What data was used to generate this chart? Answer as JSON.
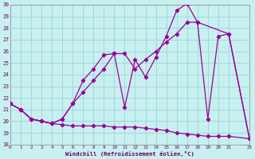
{
  "xlabel": "Windchill (Refroidissement éolien,°C)",
  "xlim": [
    0,
    23
  ],
  "ylim": [
    18,
    30
  ],
  "bg_color": "#c8f0f0",
  "line_color": "#990099",
  "grid_color": "#a0d8d8",
  "line1_x": [
    0,
    1,
    2,
    3,
    4,
    5,
    6,
    7,
    8,
    9,
    10,
    11,
    12,
    13,
    14,
    15,
    16,
    17,
    18,
    19,
    20,
    21,
    23
  ],
  "line1_y": [
    21.5,
    21.0,
    20.2,
    20.0,
    19.8,
    19.7,
    19.6,
    19.6,
    19.6,
    19.6,
    19.5,
    19.5,
    19.5,
    19.4,
    19.3,
    19.2,
    19.0,
    18.9,
    18.8,
    18.7,
    18.7,
    18.7,
    18.5
  ],
  "line2_x": [
    0,
    1,
    2,
    3,
    4,
    5,
    6,
    7,
    8,
    9,
    10,
    11,
    12,
    13,
    14,
    15,
    16,
    17,
    18,
    19,
    20,
    21,
    23
  ],
  "line2_y": [
    21.5,
    21.0,
    20.2,
    20.0,
    19.8,
    20.2,
    21.5,
    23.5,
    24.5,
    25.7,
    25.8,
    21.2,
    25.3,
    23.8,
    25.5,
    27.3,
    29.5,
    30.1,
    28.5,
    20.2,
    27.3,
    27.5,
    18.5
  ],
  "line3_x": [
    0,
    1,
    2,
    3,
    4,
    5,
    6,
    7,
    8,
    9,
    10,
    11,
    12,
    13,
    14,
    15,
    16,
    17,
    18,
    21,
    23
  ],
  "line3_y": [
    21.5,
    21.0,
    20.2,
    20.0,
    19.8,
    20.2,
    21.5,
    22.5,
    23.5,
    24.5,
    25.8,
    25.8,
    24.5,
    25.3,
    26.0,
    26.8,
    27.5,
    28.5,
    28.5,
    27.5,
    18.5
  ]
}
